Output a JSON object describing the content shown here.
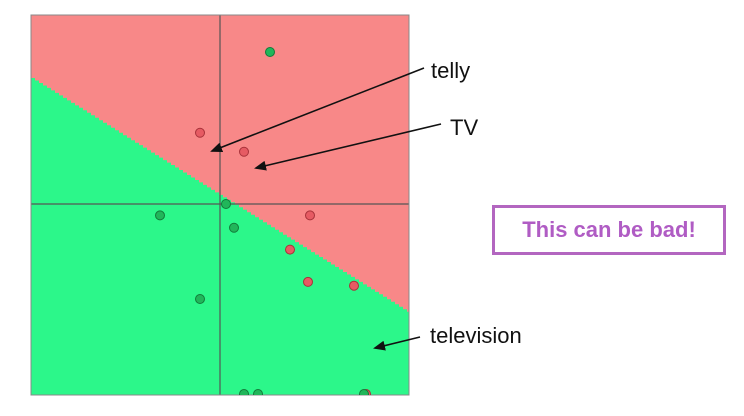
{
  "diagram": {
    "colors": {
      "region_top": "#f88888",
      "region_bottom": "#2cf78a",
      "point_red": "#e65b63",
      "point_green": "#21b65a",
      "axis": "#555555",
      "callout": "#b05cc4"
    },
    "points": [
      {
        "id": "g1",
        "class": "green",
        "x": 0.25,
        "y": 1.6
      },
      {
        "id": "r_telly",
        "class": "red",
        "x": -0.1,
        "y": 0.75
      },
      {
        "id": "r_tv",
        "class": "red",
        "x": 0.12,
        "y": 0.55
      },
      {
        "id": "g2",
        "class": "green",
        "x": -0.3,
        "y": -0.12
      },
      {
        "id": "g3",
        "class": "green",
        "x": 0.03,
        "y": 0.0
      },
      {
        "id": "g4",
        "class": "green",
        "x": 0.07,
        "y": -0.25
      },
      {
        "id": "r1",
        "class": "red",
        "x": 0.45,
        "y": -0.12
      },
      {
        "id": "r2",
        "class": "red",
        "x": 0.35,
        "y": -0.48
      },
      {
        "id": "r3",
        "class": "red",
        "x": 0.44,
        "y": -0.82
      },
      {
        "id": "r4",
        "class": "red",
        "x": 0.67,
        "y": -0.86
      },
      {
        "id": "g5",
        "class": "green",
        "x": -0.1,
        "y": -1.0
      },
      {
        "id": "g6",
        "class": "green",
        "x": 0.12,
        "y": -2.3
      },
      {
        "id": "g7",
        "class": "green",
        "x": 0.19,
        "y": -2.3
      },
      {
        "id": "r_television",
        "class": "red",
        "x": 0.73,
        "y": -2.2
      },
      {
        "id": "g8",
        "class": "green",
        "x": 0.72,
        "y": -2.8
      }
    ],
    "labels": {
      "telly": "telly",
      "tv": "TV",
      "television": "television"
    },
    "callout": "This can be bad!"
  }
}
